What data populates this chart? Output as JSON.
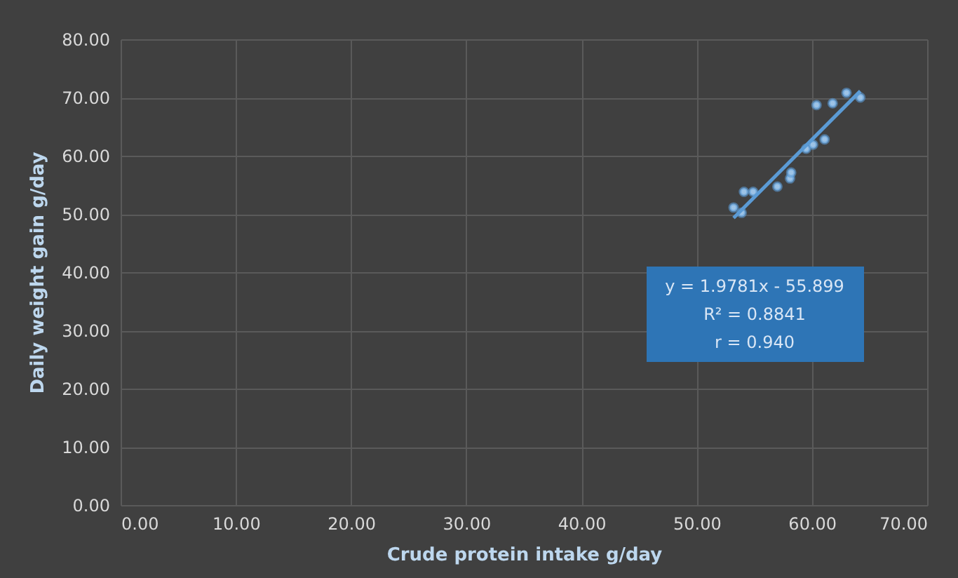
{
  "chart_data": {
    "type": "scatter",
    "xlabel": "Crude protein intake g/day",
    "ylabel": "Daily weight gain g/day",
    "series": [
      {
        "color": "#9dc3e6",
        "x": [
          53.2,
          53.9,
          54.1,
          54.9,
          57.0,
          58.1,
          58.2,
          59.5,
          60.1,
          61.1,
          60.4,
          61.8,
          63.0,
          64.2
        ],
        "values": [
          51.1,
          50.2,
          53.8,
          53.8,
          54.7,
          56.1,
          57.1,
          61.2,
          61.9,
          62.8,
          68.7,
          69.0,
          70.8,
          70.0
        ]
      },
      {
        "type": "line",
        "marker": "none",
        "line_style": "solid",
        "color": "#5b9bd5",
        "x": [
          53.2,
          64.2
        ],
        "values": [
          49.3,
          71.1
        ]
      }
    ],
    "annotations": [
      "y = 1.9781x - 55.899",
      "R² = 0.8841",
      "r = 0.940"
    ],
    "xlim": [
      0,
      70
    ],
    "ylim": [
      0,
      80
    ],
    "xticks": [
      {
        "value": 0,
        "label": "0.00"
      },
      {
        "value": 10,
        "label": "10.00"
      },
      {
        "value": 20,
        "label": "20.00"
      },
      {
        "value": 30,
        "label": "30.00"
      },
      {
        "value": 40,
        "label": "40.00"
      },
      {
        "value": 50,
        "label": "50.00"
      },
      {
        "value": 60,
        "label": "60.00"
      },
      {
        "value": 70,
        "label": "70.00"
      }
    ],
    "yticks": [
      {
        "value": 0,
        "label": "0.00"
      },
      {
        "value": 10,
        "label": "10.00"
      },
      {
        "value": 20,
        "label": "20.00"
      },
      {
        "value": 30,
        "label": "30.00"
      },
      {
        "value": 40,
        "label": "40.00"
      },
      {
        "value": 50,
        "label": "50.00"
      },
      {
        "value": 60,
        "label": "60.00"
      },
      {
        "value": 70,
        "label": "70.00"
      },
      {
        "value": 80,
        "label": "80.00"
      }
    ],
    "grid": true,
    "marker": "circle"
  }
}
